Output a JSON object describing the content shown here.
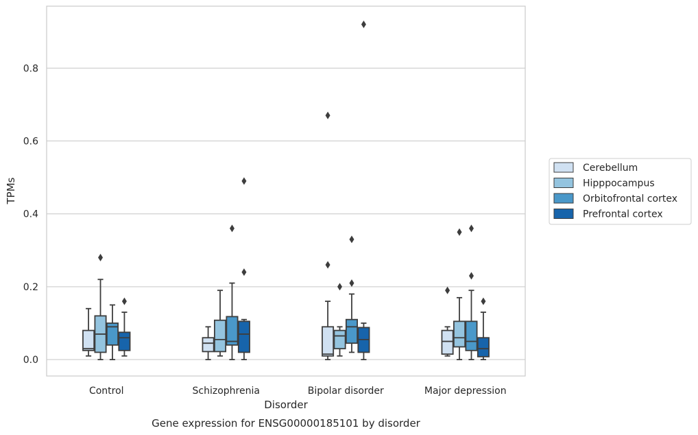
{
  "chart_data": {
    "type": "box",
    "categories": [
      "Control",
      "Schizophrenia",
      "Bipolar disorder",
      "Major depression"
    ],
    "xlabel": "Disorder",
    "ylabel": "TPMs",
    "caption": "Gene expression for ENSG00000185101 by disorder",
    "ylim": [
      -0.045,
      0.97
    ],
    "yticks": [
      0.0,
      0.2,
      0.4,
      0.6,
      0.8
    ],
    "ytick_labels": [
      "0.0",
      "0.2",
      "0.4",
      "0.6",
      "0.8"
    ],
    "grid": "horizontal",
    "legend_position": "right",
    "series": [
      {
        "name": "Cerebellum",
        "color": "#d0e1f2",
        "boxes": [
          {
            "whislo": 0.01,
            "q1": 0.025,
            "med": 0.03,
            "q3": 0.08,
            "whishi": 0.14,
            "fliers": []
          },
          {
            "whislo": 0.0,
            "q1": 0.022,
            "med": 0.045,
            "q3": 0.06,
            "whishi": 0.09,
            "fliers": []
          },
          {
            "whislo": 0.0,
            "q1": 0.01,
            "med": 0.015,
            "q3": 0.09,
            "whishi": 0.16,
            "fliers": [
              0.26,
              0.67
            ]
          },
          {
            "whislo": 0.01,
            "q1": 0.015,
            "med": 0.05,
            "q3": 0.08,
            "whishi": 0.09,
            "fliers": [
              0.19
            ]
          }
        ]
      },
      {
        "name": "Hipppocampus",
        "color": "#94c4df",
        "boxes": [
          {
            "whislo": 0.0,
            "q1": 0.02,
            "med": 0.07,
            "q3": 0.12,
            "whishi": 0.22,
            "fliers": [
              0.28
            ]
          },
          {
            "whislo": 0.01,
            "q1": 0.022,
            "med": 0.055,
            "q3": 0.108,
            "whishi": 0.19,
            "fliers": []
          },
          {
            "whislo": 0.01,
            "q1": 0.03,
            "med": 0.065,
            "q3": 0.08,
            "whishi": 0.09,
            "fliers": [
              0.2
            ]
          },
          {
            "whislo": 0.0,
            "q1": 0.035,
            "med": 0.06,
            "q3": 0.105,
            "whishi": 0.17,
            "fliers": [
              0.35
            ]
          }
        ]
      },
      {
        "name": "Orbitofrontal cortex",
        "color": "#4a98c9",
        "boxes": [
          {
            "whislo": 0.0,
            "q1": 0.04,
            "med": 0.09,
            "q3": 0.1,
            "whishi": 0.15,
            "fliers": []
          },
          {
            "whislo": 0.0,
            "q1": 0.04,
            "med": 0.05,
            "q3": 0.118,
            "whishi": 0.21,
            "fliers": [
              0.36
            ]
          },
          {
            "whislo": 0.02,
            "q1": 0.045,
            "med": 0.09,
            "q3": 0.11,
            "whishi": 0.18,
            "fliers": [
              0.21,
              0.33
            ]
          },
          {
            "whislo": 0.0,
            "q1": 0.025,
            "med": 0.05,
            "q3": 0.105,
            "whishi": 0.19,
            "fliers": [
              0.23,
              0.36
            ]
          }
        ]
      },
      {
        "name": "Prefrontal cortex",
        "color": "#1764ab",
        "boxes": [
          {
            "whislo": 0.01,
            "q1": 0.025,
            "med": 0.06,
            "q3": 0.075,
            "whishi": 0.13,
            "fliers": [
              0.16
            ]
          },
          {
            "whislo": 0.0,
            "q1": 0.02,
            "med": 0.07,
            "q3": 0.105,
            "whishi": 0.11,
            "fliers": [
              0.24,
              0.49
            ]
          },
          {
            "whislo": 0.0,
            "q1": 0.02,
            "med": 0.055,
            "q3": 0.088,
            "whishi": 0.1,
            "fliers": [
              0.92
            ]
          },
          {
            "whislo": 0.0,
            "q1": 0.008,
            "med": 0.03,
            "q3": 0.06,
            "whishi": 0.13,
            "fliers": [
              0.16
            ]
          }
        ]
      }
    ]
  }
}
